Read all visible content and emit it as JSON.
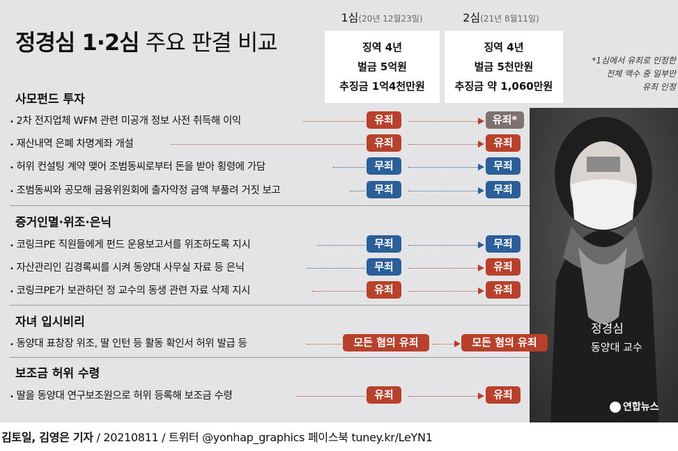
{
  "title": {
    "bold": "정경심 1·2심",
    "rest": "주요 판결 비교"
  },
  "columns": [
    {
      "label": "1심",
      "date": "(20년 12월23일)",
      "sentence": [
        "징역 4년",
        "벌금 5억원",
        "추징금 1억4천만원"
      ]
    },
    {
      "label": "2심",
      "date": "(21년 8월11일)",
      "sentence": [
        "징역 4년",
        "벌금 5천만원",
        "추징금 약 1,060만원"
      ]
    }
  ],
  "note": [
    "*1심에서 유죄로 인정한",
    "전체 액수 중 일부만",
    "유죄 인정"
  ],
  "sections": [
    {
      "title": "사모펀드 투자",
      "rows": [
        {
          "text": "2차 전지업체 WFM 관련 미공개 정보 사전 취득해 이익",
          "v1": "유죄",
          "v2": "유죄*",
          "c1": "red",
          "c2": "gray"
        },
        {
          "text": "재산내역 은폐 차명계좌 개설",
          "v1": "유죄",
          "v2": "유죄",
          "c1": "red",
          "c2": "red"
        },
        {
          "text": "허위 컨설팅 계약 맺어 조범동씨로부터 돈을 받아 횡령에 가담",
          "v1": "무죄",
          "v2": "무죄",
          "c1": "blue",
          "c2": "blue"
        },
        {
          "text": "조범동씨와 공모해 금융위원회에 출자약정 금액 부풀려 거짓 보고",
          "v1": "무죄",
          "v2": "무죄",
          "c1": "blue",
          "c2": "blue"
        }
      ]
    },
    {
      "title": "증거인멸·위조·은닉",
      "rows": [
        {
          "text": "코링크PE 직원들에게 펀드 운용보고서를 위조하도록 지시",
          "v1": "무죄",
          "v2": "무죄",
          "c1": "blue",
          "c2": "blue"
        },
        {
          "text": "자산관리인 김경록씨를 시켜 동양대 사무실 자료 등 은닉",
          "v1": "무죄",
          "v2": "유죄",
          "c1": "blue",
          "c2": "red"
        },
        {
          "text": "코링크PE가 보관하던 정 교수의 동생 관련 자료 삭제 지시",
          "v1": "유죄",
          "v2": "유죄",
          "c1": "red",
          "c2": "red"
        }
      ]
    },
    {
      "title": "자녀 입시비리",
      "rows": [
        {
          "text": "동양대 표창장 위조, 딸 인턴 등 활동 확인서 허위 발급 등",
          "v1": "모든 혐의 유죄",
          "v2": "모든 혐의 유죄",
          "c1": "red",
          "c2": "red",
          "wide": true
        }
      ]
    },
    {
      "title": "보조금 허위 수령",
      "rows": [
        {
          "text": "딸을 동양대 연구보조원으로 허위 등록해 보조금 수령",
          "v1": "유죄",
          "v2": "유죄",
          "c1": "red",
          "c2": "red"
        }
      ]
    }
  ],
  "person": {
    "name": "정경심",
    "title": "동양대 교수"
  },
  "logo": "연합뉴스",
  "footer": {
    "authors": "김토일, 김영은 기자",
    "rest": " / 20210811 / 트위터 @yonhap_graphics  페이스북 tuney.kr/LeYN1"
  },
  "colors": {
    "guilty": "#b8412b",
    "not_guilty": "#2a5f9a",
    "partial": "#7e7270",
    "background": "#e4e4e6"
  }
}
